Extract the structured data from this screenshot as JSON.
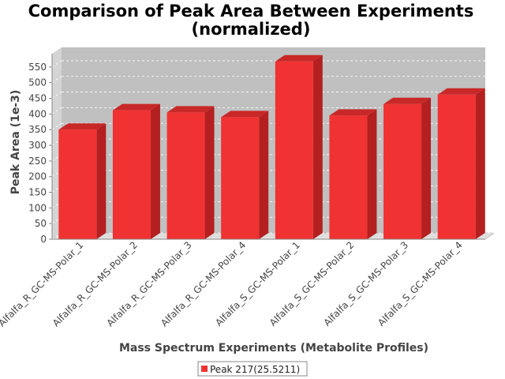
{
  "chart_data": {
    "type": "bar",
    "title_line1": "Comparison of Peak Area Between Experiments",
    "title_line2": "(normalized)",
    "xlabel": "Mass Spectrum Experiments (Metabolite Profiles)",
    "ylabel": "Peak Area (1e-3)",
    "categories": [
      "Alfalfa_R_GC-MS-Polar_1",
      "Alfalfa_R_GC-MS-Polar_2",
      "Alfalfa_R_GC-MS-Polar_3",
      "Alfalfa_R_GC-MS-Polar_4",
      "Alfalfa_S_GC-MS-Polar_1",
      "Alfalfa_S_GC-MS-Polar_2",
      "Alfalfa_S_GC-MS-Polar_3",
      "Alfalfa_S_GC-MS-Polar_4"
    ],
    "series": [
      {
        "name": "Peak 217(25.5211)",
        "values": [
          350,
          412,
          405,
          390,
          568,
          395,
          432,
          462
        ]
      }
    ],
    "ylim": [
      0,
      575
    ],
    "yticks": [
      0,
      50,
      100,
      150,
      200,
      250,
      300,
      350,
      400,
      450,
      500,
      550
    ],
    "grid": true,
    "legend_position": "bottom",
    "colors": {
      "bar_front": "#f03232",
      "bar_top": "#c82828",
      "bar_side": "#b42020",
      "plot_bg": "#c0c0c0",
      "floor": "#dedede"
    }
  }
}
